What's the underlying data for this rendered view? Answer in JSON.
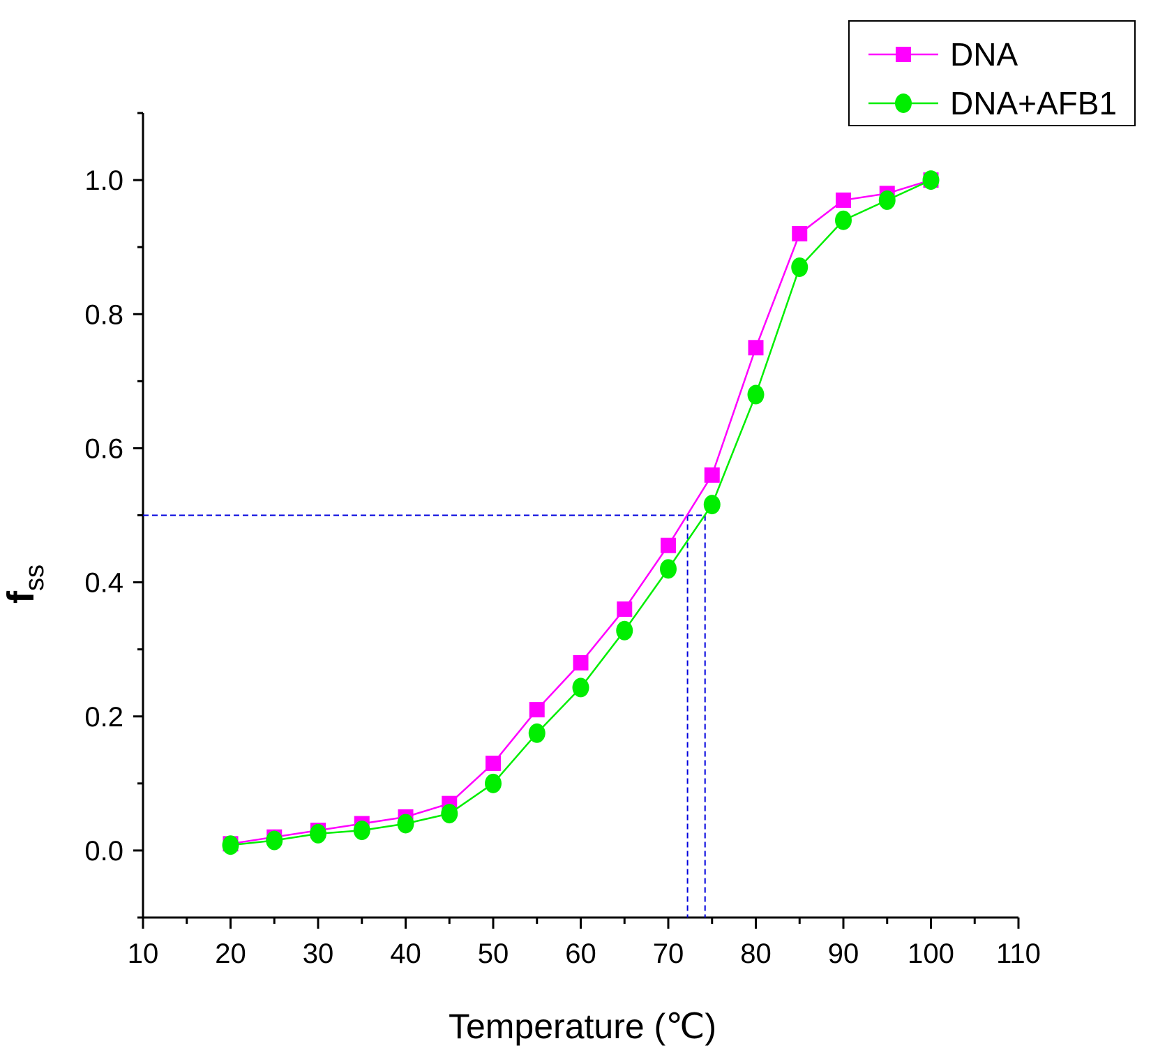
{
  "chart_data": {
    "type": "line",
    "x": [
      20,
      25,
      30,
      35,
      40,
      45,
      50,
      55,
      60,
      65,
      70,
      75,
      80,
      85,
      90,
      95,
      100
    ],
    "series": [
      {
        "name": "DNA",
        "marker": "square",
        "color": "#ff00ff",
        "values": [
          0.01,
          0.02,
          0.03,
          0.04,
          0.05,
          0.07,
          0.13,
          0.21,
          0.28,
          0.36,
          0.455,
          0.56,
          0.75,
          0.92,
          0.97,
          0.98,
          1.0
        ]
      },
      {
        "name": "DNA+AFB1",
        "marker": "circle",
        "color": "#00ee00",
        "values": [
          0.008,
          0.015,
          0.025,
          0.03,
          0.04,
          0.055,
          0.1,
          0.175,
          0.243,
          0.328,
          0.42,
          0.516,
          0.68,
          0.87,
          0.94,
          0.97,
          1.0
        ]
      }
    ],
    "reference_lines": {
      "color": "#0000dd",
      "y": 0.5,
      "x": [
        72.2,
        74.2
      ]
    },
    "xlabel": "Temperature (℃)",
    "ylabel_main": "f",
    "ylabel_sub": "ss",
    "xlim": [
      10,
      110
    ],
    "ylim": [
      -0.1,
      1.1
    ],
    "xticks": [
      "10",
      "20",
      "30",
      "40",
      "50",
      "60",
      "70",
      "80",
      "90",
      "100",
      "110"
    ],
    "yticks": [
      "0.0",
      "0.2",
      "0.4",
      "0.6",
      "0.8",
      "1.0"
    ],
    "legend_position": "top-right",
    "grid": false
  }
}
